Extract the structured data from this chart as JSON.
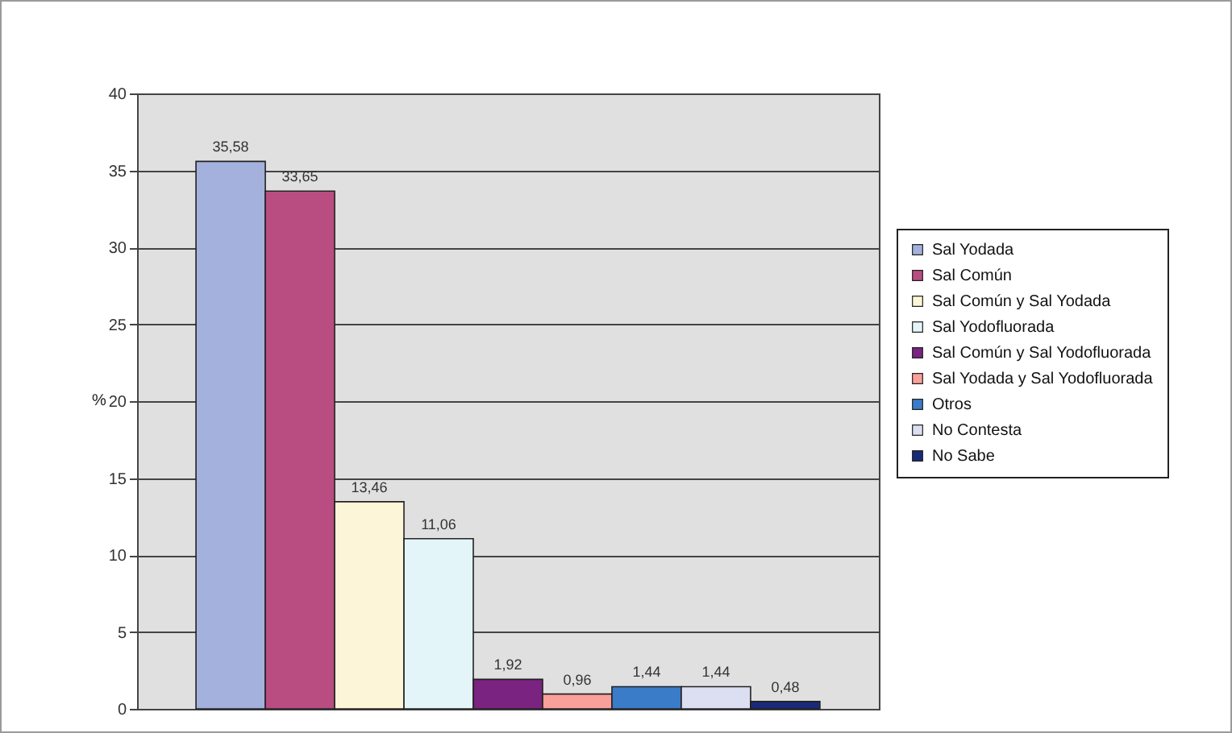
{
  "chart_data": {
    "type": "bar",
    "ylabel": "%",
    "categories": [
      null
    ],
    "series": [
      {
        "name": "Sal Yodada",
        "color": "#a3b1dc",
        "values": [
          35.58
        ],
        "value_labels": [
          "35,58"
        ]
      },
      {
        "name": "Sal Común",
        "color": "#b94d82",
        "values": [
          33.65
        ],
        "value_labels": [
          "33,65"
        ]
      },
      {
        "name": "Sal Común y Sal Yodada",
        "color": "#fdf5d8",
        "values": [
          13.46
        ],
        "value_labels": [
          "13,46"
        ]
      },
      {
        "name": "Sal Yodofluorada",
        "color": "#e3f5f8",
        "values": [
          11.06
        ],
        "value_labels": [
          "11,06"
        ]
      },
      {
        "name": "Sal Común y Sal Yodofluorada",
        "color": "#7a2380",
        "values": [
          1.92
        ],
        "value_labels": [
          "1,92"
        ]
      },
      {
        "name": "Sal Yodada y Sal Yodofluorada",
        "color": "#f9a09a",
        "values": [
          0.96
        ],
        "value_labels": [
          "0,96"
        ]
      },
      {
        "name": "Otros",
        "color": "#3a7cc8",
        "values": [
          1.44
        ],
        "value_labels": [
          "1,44"
        ]
      },
      {
        "name": "No Contesta",
        "color": "#dcdff2",
        "values": [
          1.44
        ],
        "value_labels": [
          "1,44"
        ]
      },
      {
        "name": "No Sabe",
        "color": "#1a2a7a",
        "values": [
          0.48
        ],
        "value_labels": [
          "0,48"
        ]
      }
    ],
    "ylim": [
      0,
      40
    ],
    "yticks": [
      0,
      5,
      10,
      15,
      20,
      25,
      30,
      35,
      40
    ],
    "grid": "y",
    "legend": "right",
    "tick_labels": "y"
  }
}
